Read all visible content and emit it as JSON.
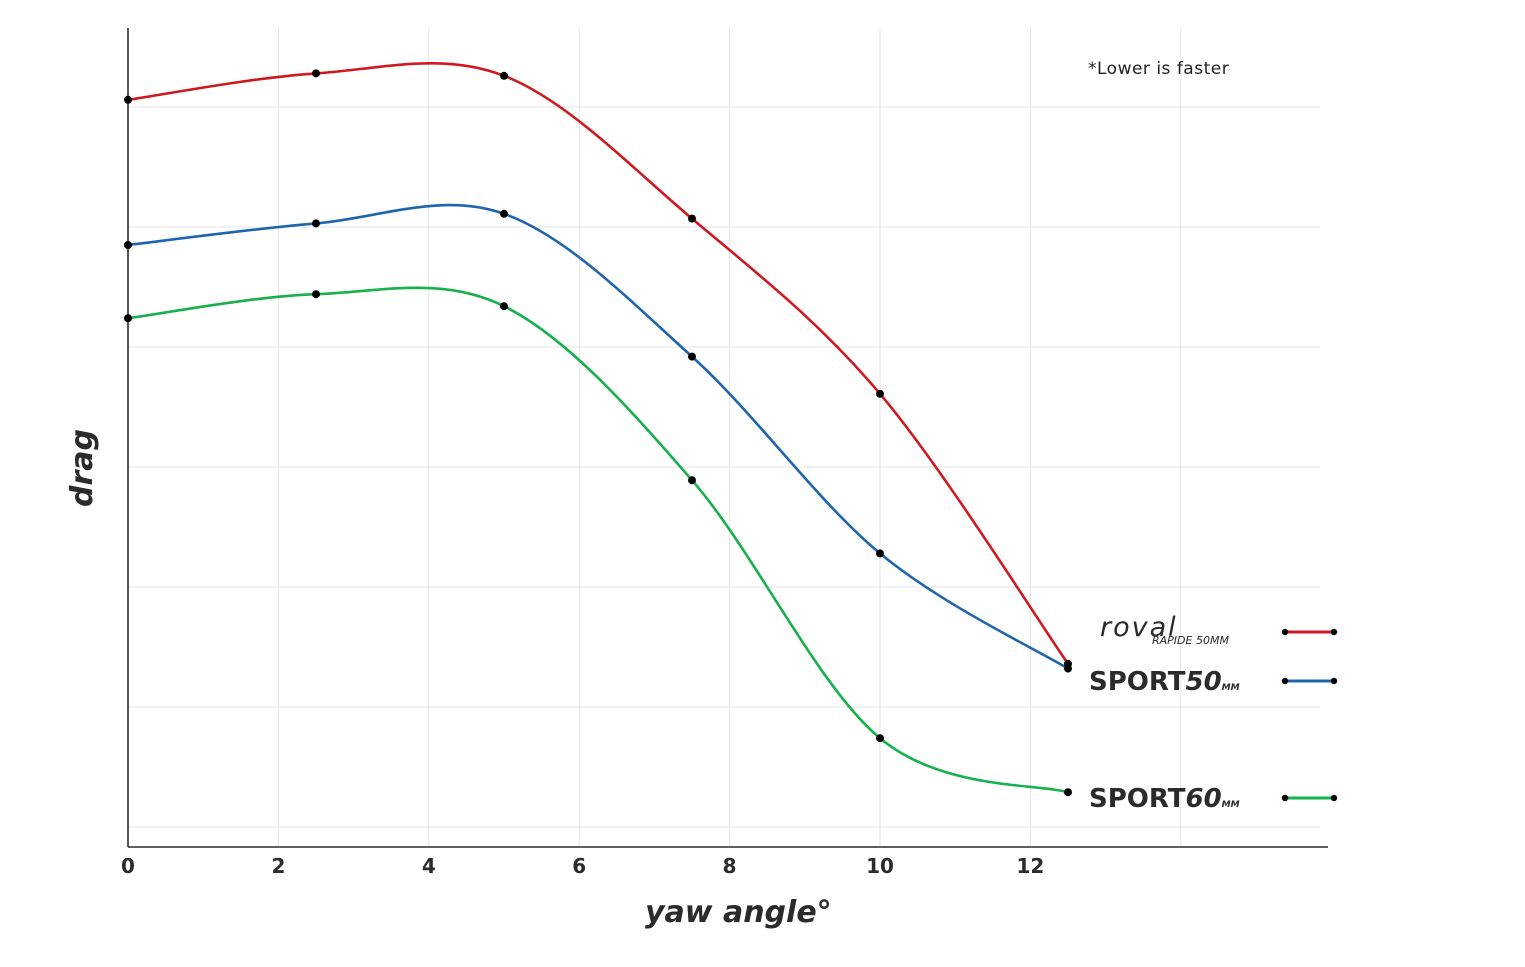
{
  "chart_data": {
    "type": "line",
    "xlabel": "yaw angle°",
    "ylabel": "drag",
    "annotation": "*Lower is faster",
    "xlim": [
      0,
      16
    ],
    "ylim": [
      0,
      7
    ],
    "x_ticks": [
      "0",
      "2",
      "4",
      "6",
      "8",
      "10",
      "12"
    ],
    "x_tick_values": [
      0,
      2,
      4,
      6,
      8,
      10,
      12
    ],
    "y_gridlines": [
      0.1,
      1.1,
      2.1,
      3.1,
      4.1,
      5.1,
      6.1
    ],
    "grid": true,
    "legend_placement": "bottom-right",
    "series": [
      {
        "key": "roval",
        "name": "roval RAPIDE 50MM",
        "color": "#d0181f",
        "x": [
          0,
          2.5,
          5,
          7.5,
          10,
          12.5
        ],
        "y": [
          6.16,
          6.38,
          6.36,
          5.17,
          3.71,
          1.46
        ]
      },
      {
        "key": "sport50",
        "name": "SPORT50MM",
        "color": "#1f65ae",
        "x": [
          0,
          2.5,
          5,
          7.5,
          10,
          12.5
        ],
        "y": [
          4.95,
          5.13,
          5.21,
          4.02,
          2.38,
          1.42
        ]
      },
      {
        "key": "sport60",
        "name": "SPORT60MM",
        "color": "#16b14c",
        "x": [
          0,
          2.5,
          5,
          7.5,
          10,
          12.5
        ],
        "y": [
          4.34,
          4.54,
          4.44,
          2.99,
          0.84,
          0.39
        ]
      }
    ]
  },
  "legend": {
    "roval_brand": "roval",
    "roval_model": "RAPIDE 50MM",
    "sport50_main": "SPORT",
    "sport50_num": "50",
    "sport50_unit": "MM",
    "sport60_main": "SPORT",
    "sport60_num": "60",
    "sport60_unit": "MM"
  }
}
